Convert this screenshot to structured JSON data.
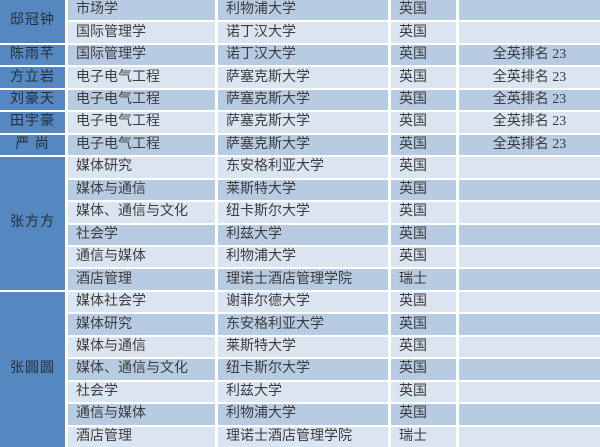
{
  "table": {
    "colors": {
      "name_cell_bg": "#5587c1",
      "row_light_bg": "#dbe5f1",
      "row_medium_bg": "#b7cbe3",
      "grid_line": "#ffffff",
      "body_text": "#3c3c3c",
      "name_text": "#242e38"
    },
    "names": [
      {
        "label": "邸冠钟",
        "rowspan": 2
      },
      {
        "label": "陈雨芊",
        "rowspan": 1
      },
      {
        "label": "方立岩",
        "rowspan": 1
      },
      {
        "label": "刘豪天",
        "rowspan": 1
      },
      {
        "label": "田宇豪",
        "rowspan": 1
      },
      {
        "label": "严 尚",
        "rowspan": 1
      },
      {
        "label": "张方方",
        "rowspan": 6
      },
      {
        "label": "张圆圆",
        "rowspan": 7
      }
    ],
    "rows": [
      {
        "major": "市场学",
        "university": "利物浦大学",
        "country": "英国",
        "ranking": "",
        "shade": "medium"
      },
      {
        "major": "国际管理学",
        "university": "诺丁汉大学",
        "country": "英国",
        "ranking": "",
        "shade": "light"
      },
      {
        "major": "国际管理学",
        "university": "诺丁汉大学",
        "country": "英国",
        "ranking": "全英排名 23",
        "shade": "medium"
      },
      {
        "major": "电子电气工程",
        "university": "萨塞克斯大学",
        "country": "英国",
        "ranking": "全英排名 23",
        "shade": "light"
      },
      {
        "major": "电子电气工程",
        "university": "萨塞克斯大学",
        "country": "英国",
        "ranking": "全英排名 23",
        "shade": "medium"
      },
      {
        "major": "电子电气工程",
        "university": "萨塞克斯大学",
        "country": "英国",
        "ranking": "全英排名 23",
        "shade": "light"
      },
      {
        "major": "电子电气工程",
        "university": "萨塞克斯大学",
        "country": "英国",
        "ranking": "全英排名 23",
        "shade": "medium"
      },
      {
        "major": "媒体研究",
        "university": "东安格利亚大学",
        "country": "英国",
        "ranking": "",
        "shade": "light"
      },
      {
        "major": "媒体与通信",
        "university": "莱斯特大学",
        "country": "英国",
        "ranking": "",
        "shade": "medium"
      },
      {
        "major": "媒体、通信与文化",
        "university": "纽卡斯尔大学",
        "country": "英国",
        "ranking": "",
        "shade": "light"
      },
      {
        "major": "社会学",
        "university": "利兹大学",
        "country": "英国",
        "ranking": "",
        "shade": "medium"
      },
      {
        "major": "通信与媒体",
        "university": "利物浦大学",
        "country": "英国",
        "ranking": "",
        "shade": "light"
      },
      {
        "major": "酒店管理",
        "university": "理诺士酒店管理学院",
        "country": "瑞士",
        "ranking": "",
        "shade": "medium"
      },
      {
        "major": "媒体社会学",
        "university": "谢菲尔德大学",
        "country": "英国",
        "ranking": "",
        "shade": "light"
      },
      {
        "major": "媒体研究",
        "university": "东安格利亚大学",
        "country": "英国",
        "ranking": "",
        "shade": "medium"
      },
      {
        "major": "媒体与通信",
        "university": "莱斯特大学",
        "country": "英国",
        "ranking": "",
        "shade": "light"
      },
      {
        "major": "媒体、通信与文化",
        "university": "纽卡斯尔大学",
        "country": "英国",
        "ranking": "",
        "shade": "medium"
      },
      {
        "major": "社会学",
        "university": "利兹大学",
        "country": "英国",
        "ranking": "",
        "shade": "light"
      },
      {
        "major": "通信与媒体",
        "university": "利物浦大学",
        "country": "英国",
        "ranking": "",
        "shade": "medium"
      },
      {
        "major": "酒店管理",
        "university": "理诺士酒店管理学院",
        "country": "瑞士",
        "ranking": "",
        "shade": "light"
      }
    ]
  }
}
